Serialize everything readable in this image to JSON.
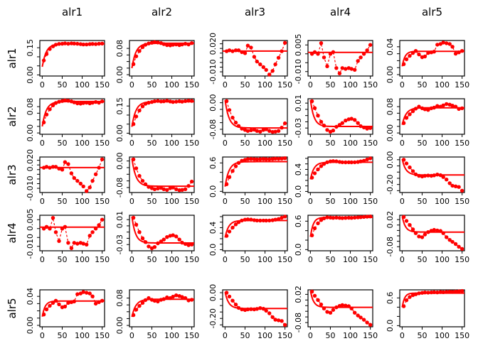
{
  "chart_data": {
    "type": "line",
    "description": "5x5 matrix of empirical (cross-)variogram plots with fitted model lines, R graphics style. Red points joined by dashed lines, solid red fitted line, black axes.",
    "accent_color": "#ff0000",
    "axis_color": "#000000",
    "col_titles": [
      "alr1",
      "alr2",
      "alr3",
      "alr4",
      "alr5"
    ],
    "row_titles": [
      "alr1",
      "alr2",
      "alr3",
      "alr4",
      "alr5"
    ],
    "x_values": [
      4,
      11,
      19,
      27,
      34,
      42,
      50,
      57,
      65,
      73,
      80,
      88,
      96,
      103,
      111,
      119,
      126,
      134,
      142,
      150
    ],
    "x_ticks": [
      {
        "v": 0,
        "label": "0"
      },
      {
        "v": 50,
        "label": "50"
      },
      {
        "v": 100,
        "label": "100"
      },
      {
        "v": 150,
        "label": "150"
      }
    ],
    "x_axis_range": [
      0,
      150
    ],
    "patterns": {
      "alr1-alr1": {
        "ylim": [
          -0.006,
          0.19
        ],
        "yticks": [
          [
            0,
            "0.00"
          ],
          [
            0.05,
            null
          ],
          [
            0.1,
            null
          ],
          [
            0.15,
            "0.15"
          ]
        ],
        "points": [
          0.08,
          0.115,
          0.143,
          0.158,
          0.167,
          0.171,
          0.172,
          0.174,
          0.172,
          0.174,
          0.173,
          0.172,
          0.17,
          0.168,
          0.168,
          0.17,
          0.171,
          0.17,
          0.172,
          0.173
        ],
        "fit": {
          "type": "exp",
          "y0": 0.045,
          "sill": 0.172,
          "range": 10
        }
      },
      "alr1-alr2": {
        "ylim": [
          -0.004,
          0.104
        ],
        "yticks": [
          [
            0,
            "0.00"
          ],
          [
            0.02,
            null
          ],
          [
            0.04,
            null
          ],
          [
            0.06,
            null
          ],
          [
            0.08,
            "0.08"
          ]
        ],
        "points": [
          0.032,
          0.056,
          0.072,
          0.084,
          0.091,
          0.095,
          0.097,
          0.099,
          0.098,
          0.096,
          0.093,
          0.09,
          0.089,
          0.091,
          0.092,
          0.09,
          0.092,
          0.094,
          0.092,
          0.096
        ],
        "fit": {
          "type": "exp",
          "y0": 0.02,
          "sill": 0.0955,
          "range": 10
        }
      },
      "alr1-alr3": {
        "ylim": [
          -0.0145,
          0.0235
        ],
        "yticks": [
          [
            -0.01,
            "-0.010"
          ],
          [
            -0.005,
            null
          ],
          [
            0,
            null
          ],
          [
            0.005,
            null
          ],
          [
            0.01,
            null
          ],
          [
            0.015,
            null
          ],
          [
            0.02,
            "0.020"
          ]
        ],
        "points": [
          0.012,
          0.013,
          0.012,
          0.013,
          0.013,
          0.011,
          0.01,
          0.018,
          0.016,
          0.006,
          0.001,
          -0.002,
          -0.005,
          -0.008,
          -0.013,
          -0.009,
          -0.002,
          0.005,
          0.012,
          0.021
        ],
        "fit": {
          "type": "flat",
          "value": 0.0122
        }
      },
      "alr1-alr4": {
        "ylim": [
          -0.0125,
          0.0075
        ],
        "yticks": [
          [
            -0.01,
            "-0.010"
          ],
          [
            -0.005,
            null
          ],
          [
            0,
            null
          ],
          [
            0.005,
            "0.005"
          ]
        ],
        "points": [
          0.0,
          0.001,
          0.0,
          0.006,
          -0.002,
          -0.007,
          0.0,
          0.001,
          -0.008,
          -0.011,
          -0.008,
          -0.0085,
          -0.008,
          -0.0085,
          -0.009,
          -0.004,
          -0.002,
          0.0,
          0.002,
          0.005
        ],
        "fit": {
          "type": "flat",
          "value": 0.0008
        }
      },
      "alr1-alr5": {
        "ylim": [
          -0.002,
          0.049
        ],
        "yticks": [
          [
            0,
            "0.00"
          ],
          [
            0.01,
            null
          ],
          [
            0.02,
            null
          ],
          [
            0.03,
            null
          ],
          [
            0.04,
            "0.04"
          ]
        ],
        "points": [
          0.015,
          0.022,
          0.027,
          0.031,
          0.034,
          0.029,
          0.025,
          0.026,
          0.031,
          0.032,
          0.033,
          0.043,
          0.044,
          0.046,
          0.045,
          0.044,
          0.04,
          0.03,
          0.032,
          0.034
        ],
        "fit": {
          "type": "exp",
          "y0": 0.012,
          "sill": 0.0335,
          "range": 7
        }
      },
      "alr2-alr2": {
        "ylim": [
          -0.006,
          0.19
        ],
        "yticks": [
          [
            0,
            "0.00"
          ],
          [
            0.05,
            null
          ],
          [
            0.1,
            null
          ],
          [
            0.15,
            "0.15"
          ]
        ],
        "points": [
          0.05,
          0.092,
          0.125,
          0.148,
          0.162,
          0.168,
          0.172,
          0.176,
          0.178,
          0.175,
          0.176,
          0.179,
          0.175,
          0.172,
          0.174,
          0.176,
          0.174,
          0.177,
          0.179,
          0.178
        ],
        "fit": {
          "type": "exp",
          "y0": 0.035,
          "sill": 0.174,
          "range": 10
        }
      },
      "alr2-alr3": {
        "ylim": [
          -0.095,
          0.012
        ],
        "yticks": [
          [
            -0.08,
            "-0.08"
          ],
          [
            -0.06,
            null
          ],
          [
            -0.04,
            null
          ],
          [
            -0.02,
            null
          ],
          [
            0,
            "0.00"
          ]
        ],
        "points": [
          0.005,
          -0.022,
          -0.045,
          -0.06,
          -0.07,
          -0.078,
          -0.082,
          -0.085,
          -0.083,
          -0.081,
          -0.085,
          -0.087,
          -0.082,
          -0.08,
          -0.085,
          -0.088,
          -0.087,
          -0.085,
          -0.075,
          -0.062
        ],
        "fit": {
          "type": "exp",
          "y0": 0.008,
          "sill": -0.076,
          "range": 10
        }
      },
      "alr2-alr4": {
        "ylim": [
          -0.04,
          0.017
        ],
        "yticks": [
          [
            -0.03,
            "-0.03"
          ],
          [
            -0.02,
            null
          ],
          [
            -0.01,
            null
          ],
          [
            0,
            null
          ],
          [
            0.01,
            "0.01"
          ]
        ],
        "points": [
          0.013,
          0.002,
          -0.01,
          -0.02,
          -0.026,
          -0.033,
          -0.036,
          -0.034,
          -0.028,
          -0.025,
          -0.022,
          -0.018,
          -0.016,
          -0.015,
          -0.017,
          -0.022,
          -0.027,
          -0.029,
          -0.031,
          -0.03
        ],
        "fit": {
          "type": "exp",
          "y0": 0.015,
          "sill": -0.0275,
          "range": 9
        }
      },
      "alr2-alr5": {
        "ylim": [
          -0.004,
          0.104
        ],
        "yticks": [
          [
            0,
            "0.00"
          ],
          [
            0.02,
            null
          ],
          [
            0.04,
            null
          ],
          [
            0.06,
            null
          ],
          [
            0.08,
            "0.08"
          ]
        ],
        "points": [
          0.03,
          0.046,
          0.057,
          0.066,
          0.074,
          0.08,
          0.075,
          0.072,
          0.07,
          0.075,
          0.077,
          0.082,
          0.08,
          0.084,
          0.088,
          0.086,
          0.083,
          0.08,
          0.073,
          0.075
        ],
        "fit": {
          "type": "exp",
          "y0": 0.025,
          "sill": 0.0765,
          "range": 10
        }
      },
      "alr3-alr3": {
        "ylim": [
          -0.025,
          0.725
        ],
        "yticks": [
          [
            0,
            "0.0"
          ],
          [
            0.2,
            null
          ],
          [
            0.4,
            null
          ],
          [
            0.6,
            "0.6"
          ]
        ],
        "points": [
          0.15,
          0.3,
          0.43,
          0.53,
          0.6,
          0.645,
          0.665,
          0.68,
          0.685,
          0.68,
          0.676,
          0.68,
          0.684,
          0.68,
          0.678,
          0.684,
          0.69,
          0.688,
          0.692,
          0.7
        ],
        "fit": {
          "type": "exp",
          "y0": 0.1,
          "sill": 0.627,
          "range": 10
        }
      },
      "alr3-alr4": {
        "ylim": [
          -0.02,
          0.625
        ],
        "yticks": [
          [
            0,
            "0.0"
          ],
          [
            0.1,
            null
          ],
          [
            0.2,
            null
          ],
          [
            0.3,
            null
          ],
          [
            0.4,
            "0.4"
          ],
          [
            0.5,
            null
          ],
          [
            0.6,
            null
          ]
        ],
        "points": [
          0.25,
          0.33,
          0.4,
          0.46,
          0.5,
          0.53,
          0.545,
          0.55,
          0.546,
          0.536,
          0.53,
          0.528,
          0.53,
          0.528,
          0.53,
          0.535,
          0.545,
          0.556,
          0.58,
          0.6
        ],
        "fit": {
          "type": "exp",
          "y0": 0.22,
          "sill": 0.53,
          "range": 9
        }
      },
      "alr3-alr5": {
        "ylim": [
          -0.265,
          0.022
        ],
        "yticks": [
          [
            -0.25,
            null
          ],
          [
            -0.2,
            "-0.20"
          ],
          [
            -0.15,
            null
          ],
          [
            -0.1,
            null
          ],
          [
            -0.05,
            null
          ],
          [
            0,
            "0.00"
          ]
        ],
        "points": [
          0.0,
          -0.03,
          -0.062,
          -0.092,
          -0.118,
          -0.13,
          -0.135,
          -0.13,
          -0.128,
          -0.13,
          -0.126,
          -0.12,
          -0.125,
          -0.14,
          -0.16,
          -0.19,
          -0.21,
          -0.215,
          -0.22,
          -0.25
        ],
        "fit": {
          "type": "exp",
          "y0": 0.005,
          "sill": -0.123,
          "range": 9
        }
      },
      "alr4-alr4": {
        "ylim": [
          -0.025,
          0.725
        ],
        "yticks": [
          [
            0,
            "0.0"
          ],
          [
            0.2,
            null
          ],
          [
            0.4,
            null
          ],
          [
            0.6,
            "0.6"
          ]
        ],
        "points": [
          0.3,
          0.45,
          0.555,
          0.625,
          0.66,
          0.68,
          0.675,
          0.67,
          0.675,
          0.67,
          0.665,
          0.67,
          0.672,
          0.67,
          0.675,
          0.68,
          0.685,
          0.69,
          0.695,
          0.7
        ],
        "fit": {
          "type": "exp",
          "y0": 0.27,
          "sill": 0.68,
          "range": 7
        }
      },
      "alr4-alr5": {
        "ylim": [
          -0.095,
          0.036
        ],
        "yticks": [
          [
            -0.08,
            "-0.08"
          ],
          [
            -0.06,
            null
          ],
          [
            -0.04,
            null
          ],
          [
            -0.02,
            null
          ],
          [
            0,
            null
          ],
          [
            0.02,
            "0.02"
          ]
        ],
        "points": [
          0.03,
          0.015,
          0.0,
          -0.016,
          -0.03,
          -0.042,
          -0.045,
          -0.035,
          -0.026,
          -0.021,
          -0.018,
          -0.02,
          -0.022,
          -0.03,
          -0.045,
          -0.055,
          -0.062,
          -0.07,
          -0.08,
          -0.088
        ],
        "fit": {
          "type": "exp",
          "y0": 0.032,
          "sill": -0.026,
          "range": 8
        }
      },
      "alr5-alr5": {
        "ylim": [
          -0.025,
          0.775
        ],
        "yticks": [
          [
            0,
            "0.0"
          ],
          [
            0.2,
            null
          ],
          [
            0.4,
            null
          ],
          [
            0.6,
            "0.6"
          ]
        ],
        "points": [
          0.42,
          0.55,
          0.62,
          0.66,
          0.68,
          0.7,
          0.71,
          0.718,
          0.715,
          0.72,
          0.724,
          0.72,
          0.728,
          0.725,
          0.73,
          0.734,
          0.73,
          0.738,
          0.742,
          0.75
        ],
        "fit": {
          "type": "exp",
          "y0": 0.4,
          "sill": 0.705,
          "range": 6
        }
      }
    },
    "grid": [
      [
        "alr1-alr1",
        "alr1-alr2",
        "alr1-alr3",
        "alr1-alr4",
        "alr1-alr5"
      ],
      [
        "alr1-alr2",
        "alr2-alr2",
        "alr2-alr3",
        "alr2-alr4",
        "alr2-alr5"
      ],
      [
        "alr1-alr3",
        "alr2-alr3",
        "alr3-alr3",
        "alr3-alr4",
        "alr3-alr5"
      ],
      [
        "alr1-alr4",
        "alr2-alr4",
        "alr3-alr4",
        "alr4-alr4",
        "alr4-alr5"
      ],
      [
        "alr1-alr5",
        "alr2-alr5",
        "alr3-alr5",
        "alr4-alr5",
        "alr5-alr5"
      ]
    ]
  }
}
